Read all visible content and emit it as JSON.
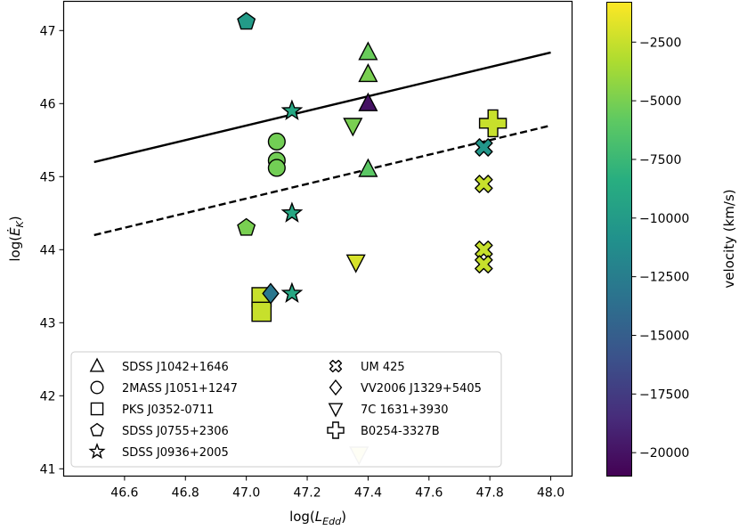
{
  "chart_data": {
    "type": "scatter",
    "title": "",
    "xlabel": "log(L_Edd)",
    "ylabel": "log(Ė_K)",
    "xlim": [
      46.4,
      48.07
    ],
    "ylim": [
      40.9,
      47.4
    ],
    "xticks": [
      "46.6",
      "46.8",
      "47.0",
      "47.2",
      "47.4",
      "47.6",
      "47.8",
      "48.0"
    ],
    "yticks": [
      "41",
      "42",
      "43",
      "44",
      "45",
      "46",
      "47"
    ],
    "lines": [
      {
        "name": "upper-relation",
        "style": "solid",
        "x": [
          46.5,
          48.0
        ],
        "y": [
          45.2,
          46.7
        ]
      },
      {
        "name": "lower-relation",
        "style": "dashed",
        "x": [
          46.5,
          48.0
        ],
        "y": [
          44.2,
          45.7
        ]
      }
    ],
    "colorbar": {
      "label": "velocity (km/s)",
      "min": -21000,
      "max": -800,
      "ticks": [
        "−2500",
        "−5000",
        "−7500",
        "−10000",
        "−12500",
        "−15000",
        "−17500",
        "−20000"
      ]
    },
    "legend_position": "lower-left",
    "series": [
      {
        "name": "SDSS J1042+1646",
        "marker": "triangle-up",
        "points": [
          {
            "x": 47.4,
            "y": 46.7,
            "v": -5500
          },
          {
            "x": 47.4,
            "y": 46.4,
            "v": -5000
          },
          {
            "x": 47.4,
            "y": 46.0,
            "v": -20000
          },
          {
            "x": 47.4,
            "y": 45.1,
            "v": -6000
          }
        ]
      },
      {
        "name": "2MASS J1051+1247",
        "marker": "circle",
        "points": [
          {
            "x": 47.1,
            "y": 45.48,
            "v": -5200
          },
          {
            "x": 47.1,
            "y": 45.22,
            "v": -5200
          },
          {
            "x": 47.1,
            "y": 45.12,
            "v": -5200
          }
        ]
      },
      {
        "name": "PKS J0352-0711",
        "marker": "square",
        "points": [
          {
            "x": 47.05,
            "y": 43.35,
            "v": -2500
          },
          {
            "x": 47.05,
            "y": 43.15,
            "v": -2500
          }
        ]
      },
      {
        "name": "SDSS J0755+2306",
        "marker": "pentagon",
        "points": [
          {
            "x": 47.0,
            "y": 47.12,
            "v": -10000
          },
          {
            "x": 47.0,
            "y": 44.3,
            "v": -5000
          }
        ]
      },
      {
        "name": "SDSS J0936+2005",
        "marker": "star",
        "points": [
          {
            "x": 47.15,
            "y": 45.9,
            "v": -9000
          },
          {
            "x": 47.15,
            "y": 44.5,
            "v": -9000
          },
          {
            "x": 47.15,
            "y": 43.4,
            "v": -9000
          }
        ]
      },
      {
        "name": "UM 425",
        "marker": "x",
        "points": [
          {
            "x": 47.78,
            "y": 45.4,
            "v": -10500
          },
          {
            "x": 47.78,
            "y": 44.9,
            "v": -2500
          },
          {
            "x": 47.78,
            "y": 44.0,
            "v": -2500
          },
          {
            "x": 47.78,
            "y": 43.8,
            "v": -2500
          }
        ]
      },
      {
        "name": "VV2006 J1329+5405",
        "marker": "diamond",
        "points": [
          {
            "x": 47.08,
            "y": 43.4,
            "v": -13000
          }
        ]
      },
      {
        "name": "7C 1631+3930",
        "marker": "triangle-down",
        "points": [
          {
            "x": 47.35,
            "y": 45.7,
            "v": -5000
          },
          {
            "x": 47.36,
            "y": 43.83,
            "v": -2000
          },
          {
            "x": 47.37,
            "y": 41.2,
            "v": -1500,
            "faded": true
          }
        ]
      },
      {
        "name": "B0254-3327B",
        "marker": "plus",
        "points": [
          {
            "x": 47.81,
            "y": 45.73,
            "v": -2500
          }
        ]
      }
    ]
  }
}
